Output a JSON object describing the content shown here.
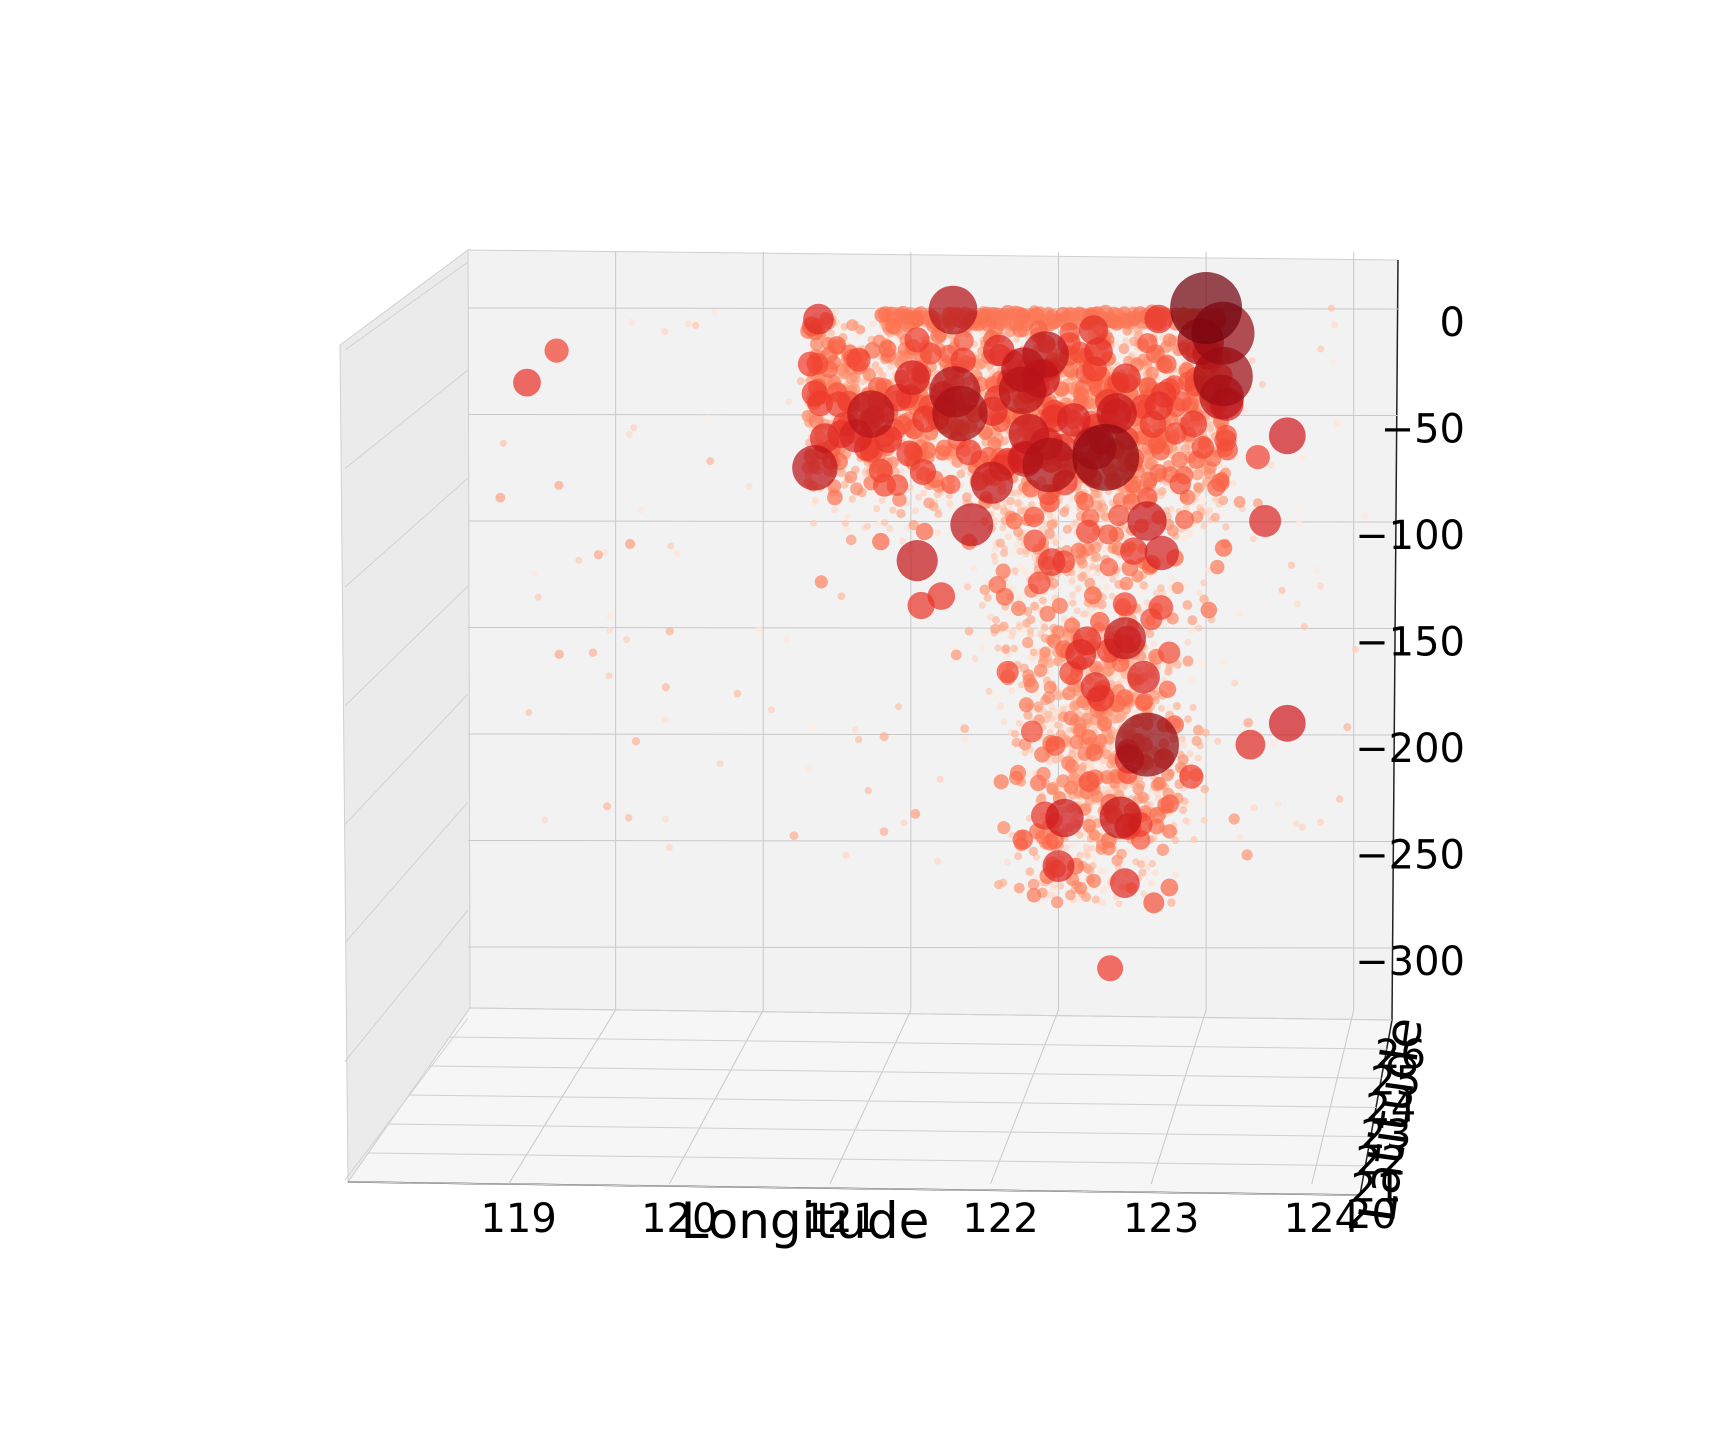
{
  "chart_data": {
    "type": "scatter3d",
    "title": "",
    "xlabel": "Longitude",
    "ylabel": "Latitude",
    "zlabel": "",
    "x_ticks": [
      "119",
      "120",
      "121",
      "122",
      "123",
      "124"
    ],
    "y_ticks": [
      "20",
      "21",
      "22",
      "23",
      "24",
      "25",
      "26"
    ],
    "z_ticks": [
      "0",
      "−50",
      "−100",
      "−150",
      "−200",
      "−250",
      "−300"
    ],
    "xlim": [
      118.0,
      124.3
    ],
    "zlim": [
      -330,
      20
    ],
    "grid": true,
    "colormap": "Reds",
    "color_by": "magnitude",
    "size_by": "magnitude",
    "legend": "none",
    "notable_events": [
      {
        "lon": 123.0,
        "depth": 0,
        "mag": 7.3
      },
      {
        "lon": 122.6,
        "depth": -205,
        "mag": 7.0
      },
      {
        "lon": 120.35,
        "depth": -75,
        "mag": 6.5
      },
      {
        "lon": 121.55,
        "depth": -82,
        "mag": 6.4
      },
      {
        "lon": 122.45,
        "depth": -155,
        "mag": 6.4
      },
      {
        "lon": 122.6,
        "depth": -100,
        "mag": 6.3
      },
      {
        "lon": 123.55,
        "depth": -60,
        "mag": 6.2
      },
      {
        "lon": 123.55,
        "depth": -195,
        "mag": 6.2
      },
      {
        "lon": 122.7,
        "depth": -115,
        "mag": 6.1
      },
      {
        "lon": 123.4,
        "depth": -100,
        "mag": 6.0
      },
      {
        "lon": 122.0,
        "depth": -262,
        "mag": 6.0
      },
      {
        "lon": 122.45,
        "depth": -270,
        "mag": 5.9
      },
      {
        "lon": 122.25,
        "depth": -178,
        "mag": 5.9
      },
      {
        "lon": 123.3,
        "depth": -205,
        "mag": 5.9
      },
      {
        "lon": 118.4,
        "depth": -35,
        "mag": 5.8
      },
      {
        "lon": 122.35,
        "depth": -310,
        "mag": 5.7
      },
      {
        "lon": 122.9,
        "depth": -220,
        "mag": 5.6
      },
      {
        "lon": 123.35,
        "depth": -70,
        "mag": 5.6
      },
      {
        "lon": 118.6,
        "depth": -20,
        "mag": 5.6
      },
      {
        "lon": 121.95,
        "depth": -72,
        "mag": 5.5
      }
    ]
  }
}
